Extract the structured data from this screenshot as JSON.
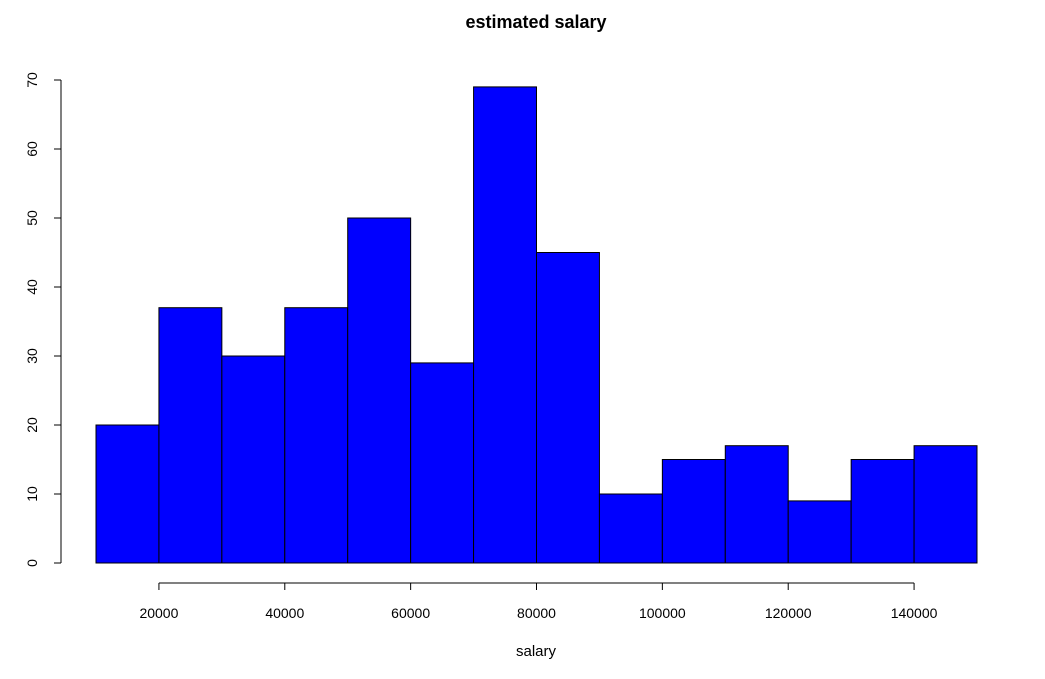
{
  "chart_data": {
    "type": "bar",
    "title": "estimated salary",
    "xlabel": "salary",
    "ylabel": "",
    "bin_edges": [
      10000,
      20000,
      30000,
      40000,
      50000,
      60000,
      70000,
      80000,
      90000,
      100000,
      110000,
      120000,
      130000,
      140000,
      150000
    ],
    "values": [
      20,
      37,
      30,
      37,
      50,
      29,
      69,
      45,
      10,
      15,
      17,
      9,
      15,
      17
    ],
    "xlim": [
      10000,
      150000
    ],
    "ylim": [
      0,
      70
    ],
    "x_ticks": [
      20000,
      40000,
      60000,
      80000,
      100000,
      120000,
      140000
    ],
    "y_ticks": [
      0,
      10,
      20,
      30,
      40,
      50,
      60,
      70
    ],
    "bar_color": "#0000ff",
    "grid": false,
    "legend": "none"
  }
}
